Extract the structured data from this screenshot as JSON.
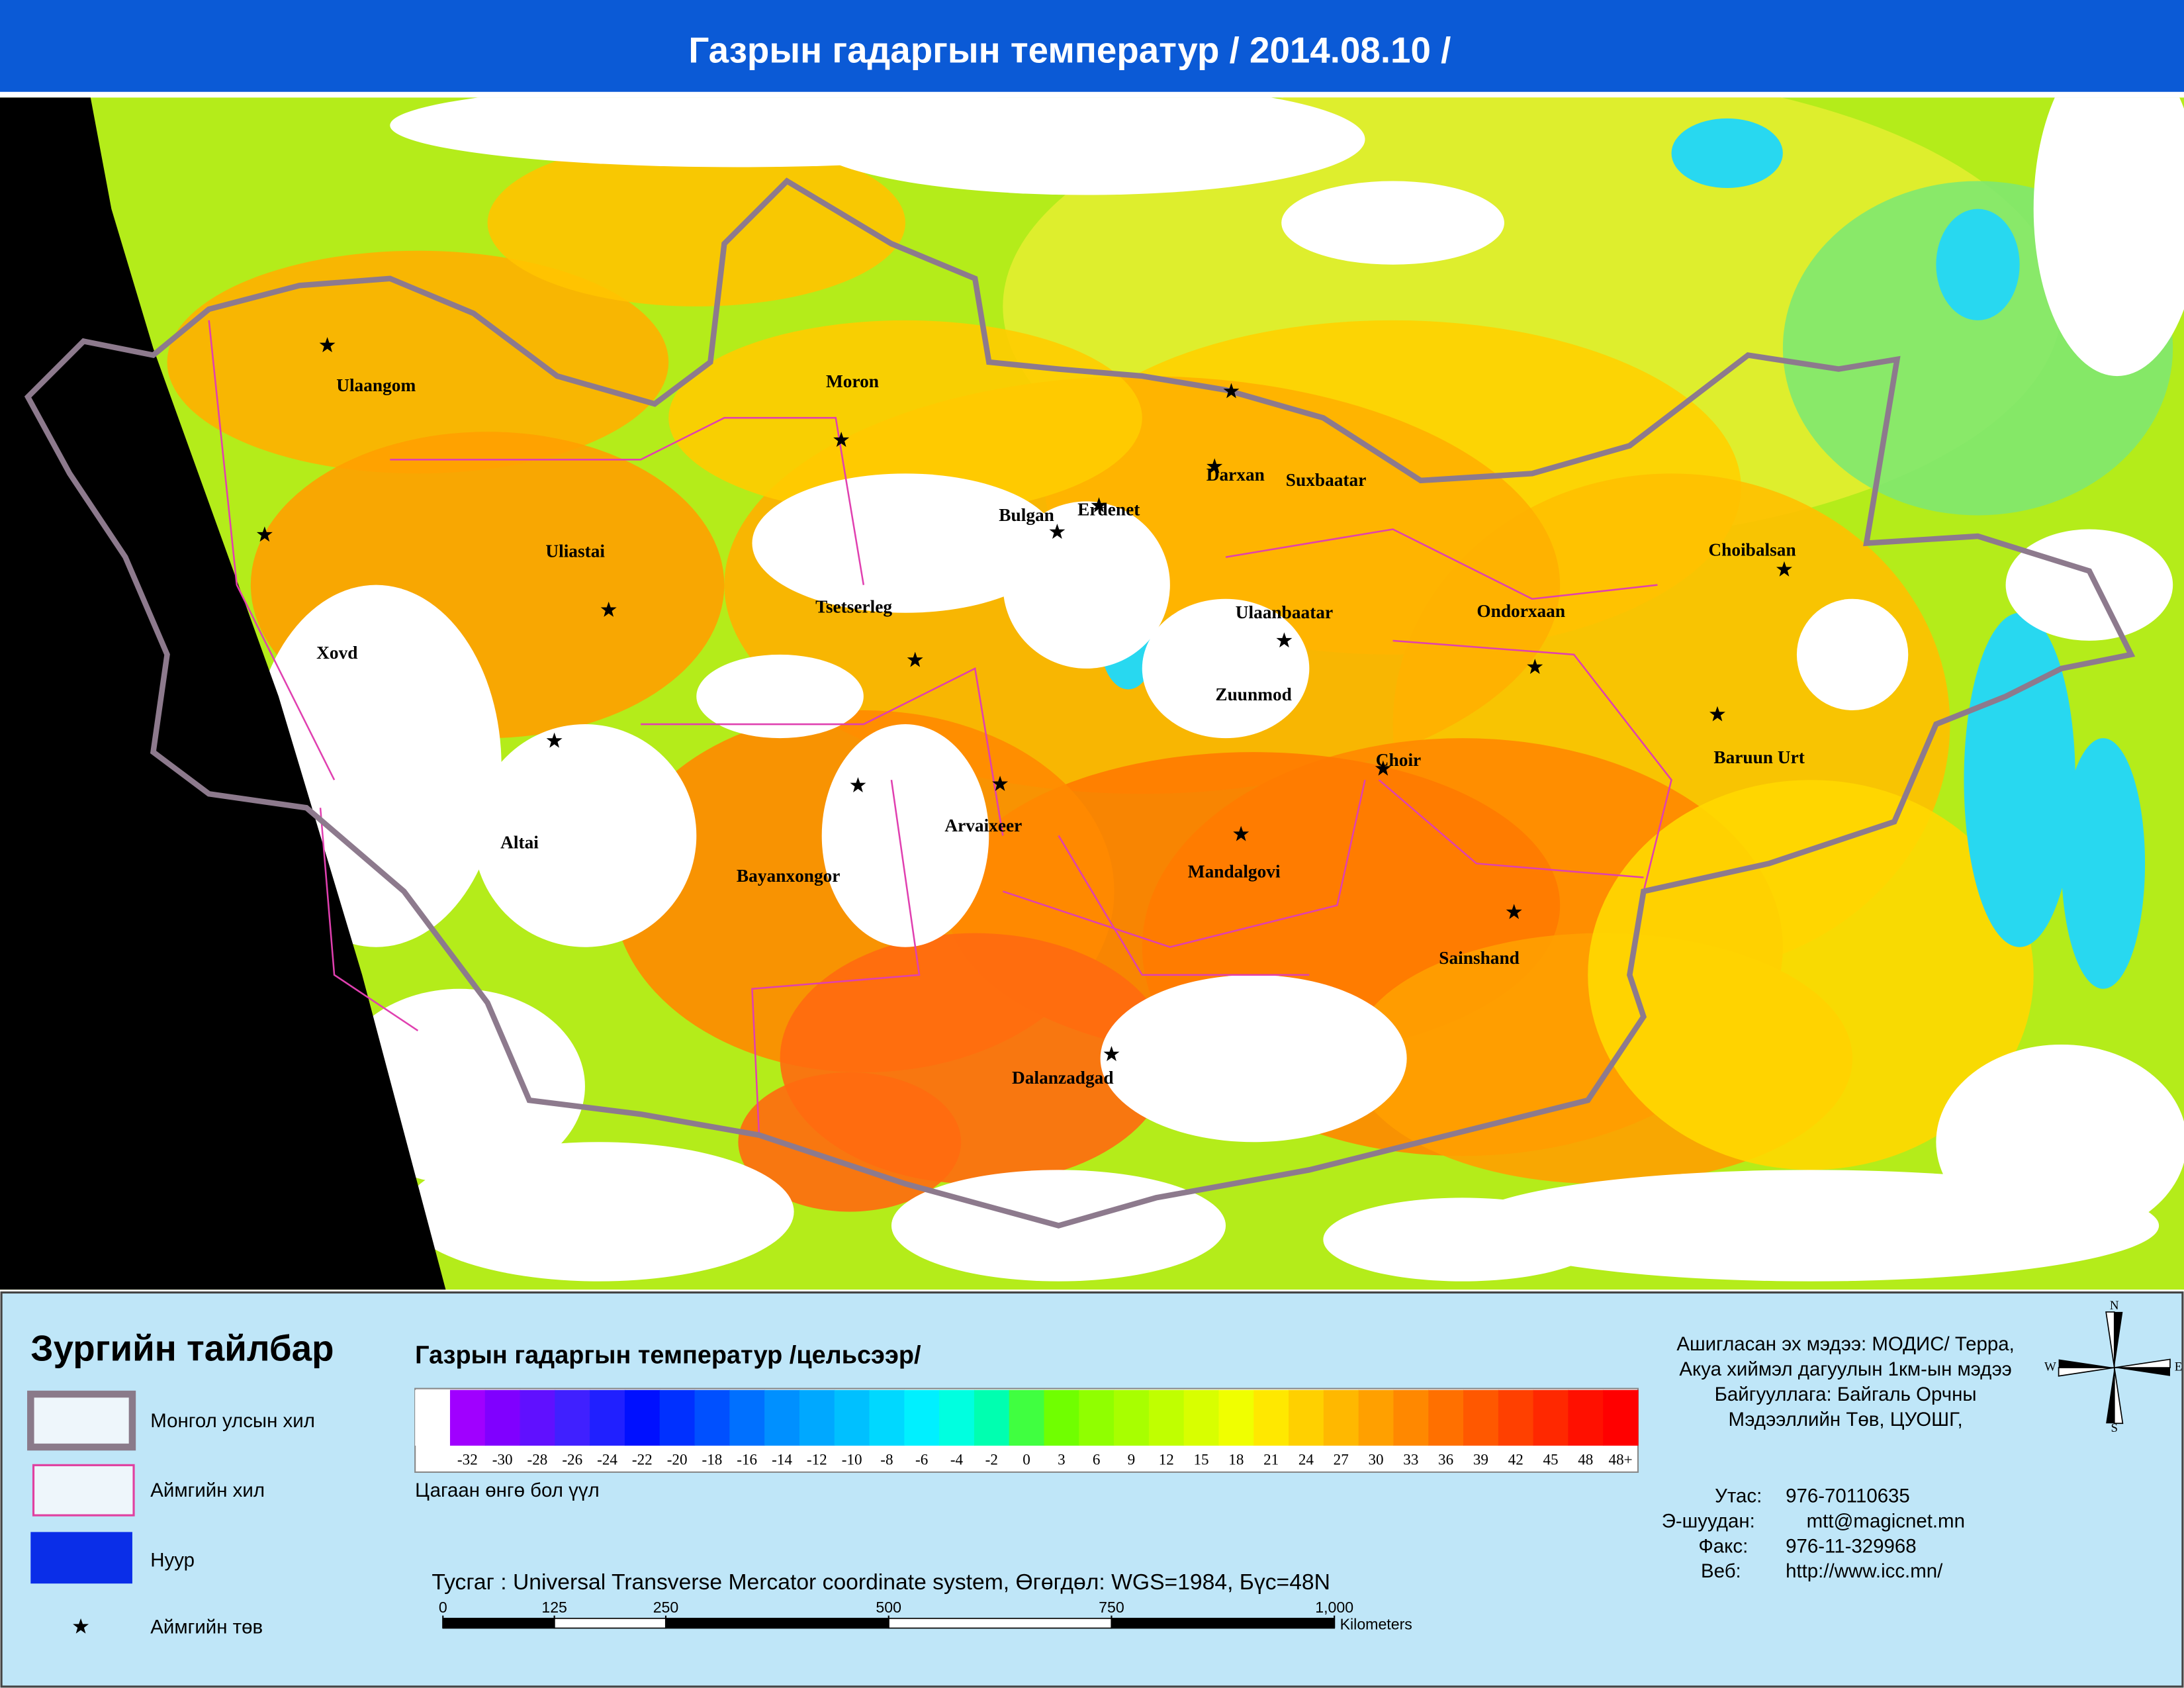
{
  "header": {
    "title": "Газрын гадаргын температур / 2014.08.10 /"
  },
  "map": {
    "cities": [
      "Ulaangom",
      "Moron",
      "Darxan",
      "Suxbaatar",
      "Erdenet",
      "Bulgan",
      "Choibalsan",
      "Uliastai",
      "Tsetserleg",
      "Xovd",
      "Ulaanbaatar",
      "Ondorxaan",
      "Zuunmod",
      "Baruun Urt",
      "Choir",
      "Altai",
      "Bayanxongor",
      "Arvaixeer",
      "Mandalgovi",
      "Sainshand",
      "Dalanzadgad"
    ]
  },
  "legend": {
    "title": "Зургийн тайлбар",
    "items": [
      "Монгол улсын хил",
      "Аймгийн хил",
      "Нуур",
      "Аймгийн төв"
    ]
  },
  "colorbar": {
    "title": "Газрын гадаргын температур /цельсээр/",
    "colors": [
      "#ffffff",
      "#a000ff",
      "#8000ff",
      "#6010ff",
      "#4020ff",
      "#2020ff",
      "#0010ff",
      "#0030ff",
      "#0050ff",
      "#0070ff",
      "#0090ff",
      "#00a8ff",
      "#00c0ff",
      "#00d8ff",
      "#00f0ff",
      "#00ffe0",
      "#00ffb0",
      "#40ff40",
      "#70ff00",
      "#90ff00",
      "#a8ff00",
      "#c0ff00",
      "#d8ff00",
      "#f0ff00",
      "#ffe800",
      "#ffd000",
      "#ffb800",
      "#ffa000",
      "#ff8800",
      "#ff7000",
      "#ff5800",
      "#ff4000",
      "#ff2800",
      "#ff1000",
      "#ff0000"
    ],
    "ticks": [
      -32,
      -30,
      -28,
      -26,
      -24,
      -22,
      -20,
      -18,
      -16,
      -14,
      -12,
      -10,
      -8,
      -6,
      -4,
      -2,
      0,
      3,
      6,
      9,
      12,
      15,
      18,
      21,
      24,
      27,
      30,
      33,
      36,
      39,
      42,
      45,
      48,
      {
        "value": 48,
        "label": "48+"
      }
    ],
    "note": "Цагаан өнгө бол үүл"
  },
  "projection": "Тусгаг : Universal Transverse Mercator coordinate system, Өгөгдөл: WGS=1984, Бүс=48N",
  "scalebar": {
    "ticks": [
      0,
      125,
      250,
      500,
      750,
      {
        "value": 1000,
        "label": "1,000"
      }
    ],
    "unit": "Kilometers"
  },
  "info": {
    "lines": [
      "Ашигласан эх мэдээ: МОДИС/ Терра,",
      "Акуа хиймэл дагуулын 1км-ын мэдээ",
      "Байгууллага: Байгаль Орчны",
      "Мэдээллийн Төв, ЦУОШГ,"
    ],
    "contacts": [
      {
        "label": "Утас:",
        "value": "976-70110635"
      },
      {
        "label": "Э-шуудан:",
        "value": "mtt@magicnet.mn"
      },
      {
        "label": "Факс:",
        "value": "976-11-329968"
      },
      {
        "label": "Веб:",
        "value": "http://www.icc.mn/"
      }
    ]
  },
  "compass": [
    "N",
    "E",
    "S",
    "W"
  ]
}
